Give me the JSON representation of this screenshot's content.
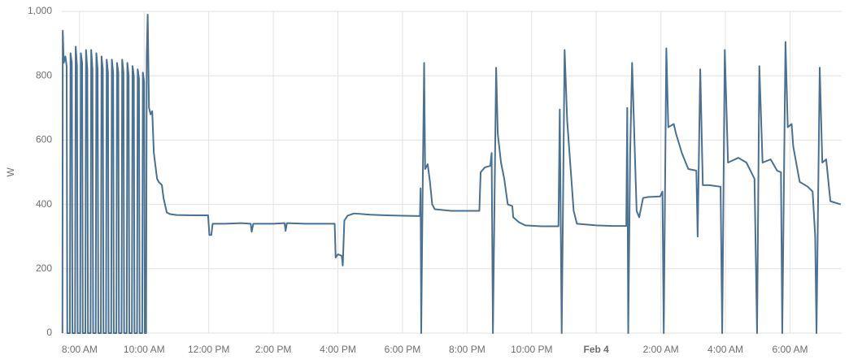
{
  "chart_data": {
    "type": "line",
    "y_label": "W",
    "color": "#4a7191",
    "grid": true,
    "xlim": [
      7.45,
      31.6
    ],
    "ylim": [
      0,
      1000
    ],
    "yticks": [
      0,
      200,
      400,
      600,
      800,
      {
        "value": 1000,
        "label": "1,000"
      }
    ],
    "xticks": [
      {
        "value": 8,
        "label": "8:00 AM"
      },
      {
        "value": 10,
        "label": "10:00 AM"
      },
      {
        "value": 12,
        "label": "12:00 PM"
      },
      {
        "value": 14,
        "label": "2:00 PM"
      },
      {
        "value": 16,
        "label": "4:00 PM"
      },
      {
        "value": 18,
        "label": "6:00 PM"
      },
      {
        "value": 20,
        "label": "8:00 PM"
      },
      {
        "value": 22,
        "label": "10:00 PM"
      },
      {
        "value": 24,
        "label": "Feb 4",
        "bold": true
      },
      {
        "value": 26,
        "label": "2:00 AM"
      },
      {
        "value": 28,
        "label": "4:00 AM"
      },
      {
        "value": 30,
        "label": "6:00 AM"
      }
    ],
    "x": [
      7.47,
      7.48,
      7.51,
      7.56,
      7.6,
      7.62,
      7.7,
      7.72,
      7.76,
      7.78,
      7.86,
      7.88,
      7.92,
      7.94,
      8.02,
      8.04,
      8.08,
      8.1,
      8.18,
      8.2,
      8.24,
      8.26,
      8.34,
      8.36,
      8.4,
      8.42,
      8.5,
      8.52,
      8.56,
      8.58,
      8.66,
      8.68,
      8.72,
      8.74,
      8.82,
      8.84,
      8.88,
      8.9,
      8.98,
      9.0,
      9.04,
      9.06,
      9.14,
      9.16,
      9.2,
      9.22,
      9.3,
      9.32,
      9.36,
      9.38,
      9.46,
      9.48,
      9.52,
      9.54,
      9.62,
      9.64,
      9.68,
      9.7,
      9.78,
      9.8,
      9.84,
      9.86,
      9.94,
      9.96,
      10.0,
      10.02,
      10.06,
      10.08,
      10.11,
      10.15,
      10.2,
      10.25,
      10.3,
      10.4,
      10.45,
      10.55,
      10.6,
      10.7,
      10.8,
      11.0,
      11.5,
      11.98,
      12.02,
      12.08,
      12.12,
      12.5,
      13.0,
      13.3,
      13.33,
      13.38,
      14.0,
      14.35,
      14.38,
      14.42,
      15.0,
      15.5,
      15.9,
      15.93,
      16.0,
      16.12,
      16.15,
      16.2,
      16.3,
      16.5,
      17.0,
      17.5,
      18.0,
      18.54,
      18.56,
      18.58,
      18.62,
      18.67,
      18.7,
      18.78,
      18.85,
      18.92,
      19.0,
      19.5,
      20.0,
      20.38,
      20.42,
      20.55,
      20.72,
      20.76,
      20.8,
      20.9,
      20.95,
      21.05,
      21.15,
      21.26,
      21.4,
      21.43,
      21.6,
      21.8,
      22.3,
      22.83,
      22.87,
      22.93,
      23.02,
      23.1,
      23.2,
      23.3,
      23.4,
      24.0,
      24.5,
      24.93,
      24.96,
      24.99,
      25.05,
      25.11,
      25.25,
      25.33,
      25.45,
      25.6,
      25.98,
      26.05,
      26.09,
      26.17,
      26.23,
      26.4,
      26.47,
      26.65,
      26.85,
      27.1,
      27.14,
      27.22,
      27.3,
      27.5,
      27.85,
      27.9,
      27.98,
      28.08,
      28.4,
      28.65,
      28.9,
      28.98,
      29.05,
      29.15,
      29.4,
      29.6,
      29.72,
      29.76,
      29.86,
      29.93,
      30.05,
      30.1,
      30.3,
      30.55,
      30.7,
      30.78,
      30.82,
      30.92,
      31.0,
      31.12,
      31.25,
      31.57
    ],
    "values": [
      0,
      940,
      840,
      860,
      830,
      0,
      0,
      870,
      840,
      0,
      0,
      890,
      830,
      0,
      0,
      870,
      840,
      0,
      0,
      880,
      820,
      0,
      0,
      880,
      820,
      0,
      0,
      870,
      820,
      0,
      0,
      860,
      820,
      0,
      0,
      850,
      810,
      0,
      0,
      850,
      810,
      0,
      0,
      840,
      810,
      0,
      0,
      850,
      810,
      0,
      0,
      840,
      800,
      0,
      0,
      830,
      800,
      0,
      0,
      820,
      790,
      0,
      0,
      810,
      780,
      0,
      0,
      860,
      990,
      700,
      680,
      690,
      560,
      480,
      470,
      460,
      420,
      375,
      370,
      367,
      366,
      366,
      305,
      305,
      340,
      340,
      342,
      340,
      315,
      340,
      340,
      342,
      318,
      342,
      340,
      340,
      340,
      235,
      245,
      240,
      210,
      350,
      365,
      372,
      368,
      366,
      365,
      364,
      450,
      0,
      400,
      840,
      510,
      525,
      470,
      400,
      385,
      380,
      380,
      380,
      500,
      515,
      520,
      560,
      0,
      825,
      620,
      530,
      480,
      400,
      395,
      360,
      345,
      335,
      332,
      332,
      695,
      0,
      880,
      660,
      520,
      380,
      340,
      335,
      333,
      333,
      700,
      0,
      560,
      840,
      380,
      360,
      420,
      423,
      425,
      440,
      0,
      885,
      640,
      650,
      620,
      560,
      510,
      505,
      300,
      820,
      460,
      460,
      455,
      0,
      880,
      530,
      545,
      530,
      480,
      0,
      830,
      530,
      540,
      505,
      500,
      0,
      905,
      640,
      650,
      580,
      470,
      455,
      440,
      300,
      0,
      825,
      530,
      540,
      410,
      400
    ]
  }
}
